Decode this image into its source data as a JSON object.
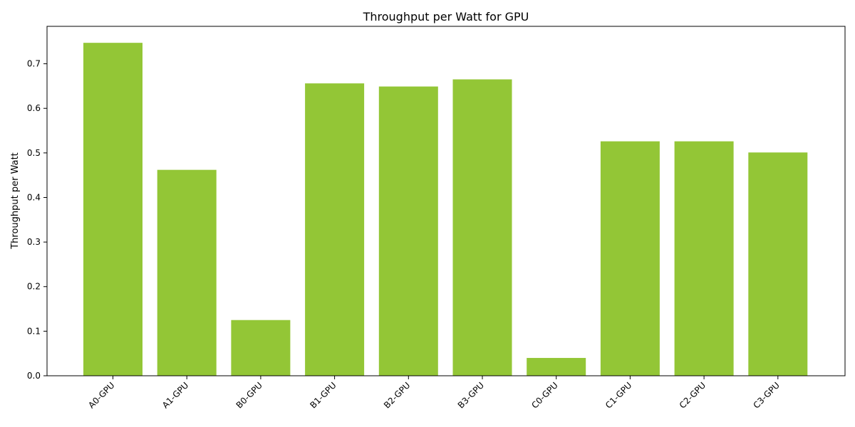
{
  "chart_data": {
    "type": "bar",
    "title": "Throughput per Watt for GPU",
    "xlabel": "",
    "ylabel": "Throughput per Watt",
    "categories": [
      "A0-GPU",
      "A1-GPU",
      "B0-GPU",
      "B1-GPU",
      "B2-GPU",
      "B3-GPU",
      "C0-GPU",
      "C1-GPU",
      "C2-GPU",
      "C3-GPU"
    ],
    "values": [
      0.747,
      0.462,
      0.125,
      0.656,
      0.649,
      0.665,
      0.04,
      0.526,
      0.526,
      0.501
    ],
    "ylim": [
      0,
      0.784
    ],
    "yticks": [
      0.0,
      0.1,
      0.2,
      0.3,
      0.4,
      0.5,
      0.6,
      0.7
    ],
    "ytick_labels": [
      "0.0",
      "0.1",
      "0.2",
      "0.3",
      "0.4",
      "0.5",
      "0.6",
      "0.7"
    ],
    "bar_color": "#93c636",
    "grid": false,
    "legend": "none"
  }
}
